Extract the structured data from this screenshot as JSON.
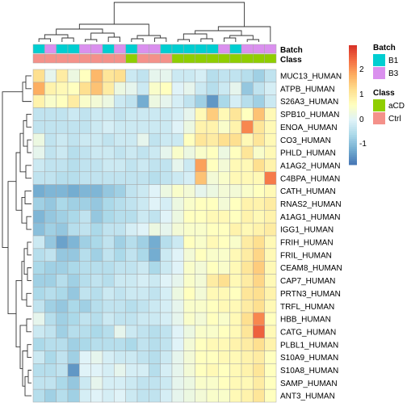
{
  "chart_data": {
    "type": "heatmap",
    "title": "",
    "rows": [
      "MUC13_HUMAN",
      "ATPB_HUMAN",
      "S26A3_HUMAN",
      "SPB10_HUMAN",
      "ENOA_HUMAN",
      "CO3_HUMAN",
      "PHLD_HUMAN",
      "A1AG2_HUMAN",
      "C4BPA_HUMAN",
      "CATH_HUMAN",
      "RNAS2_HUMAN",
      "A1AG1_HUMAN",
      "IGG1_HUMAN",
      "FRIH_HUMAN",
      "FRIL_HUMAN",
      "CEAM8_HUMAN",
      "CAP7_HUMAN",
      "PRTN3_HUMAN",
      "TRFL_HUMAN",
      "HBB_HUMAN",
      "CATG_HUMAN",
      "PLBL1_HUMAN",
      "S10A9_HUMAN",
      "S10A8_HUMAN",
      "SAMP_HUMAN",
      "ANT3_HUMAN"
    ],
    "annotation_rows": [
      {
        "name": "Batch",
        "values": [
          "B1",
          "B3",
          "B1",
          "B1",
          "B3",
          "B3",
          "B1",
          "B3",
          "B1",
          "B3",
          "B3",
          "B1",
          "B1",
          "B1",
          "B1",
          "B1",
          "B3",
          "B1",
          "B3",
          "B3",
          "B3"
        ]
      },
      {
        "name": "Class",
        "values": [
          "Ctrl",
          "Ctrl",
          "Ctrl",
          "Ctrl",
          "Ctrl",
          "Ctrl",
          "Ctrl",
          "Ctrl",
          "aCD",
          "Ctrl",
          "Ctrl",
          "Ctrl",
          "aCD",
          "aCD",
          "aCD",
          "aCD",
          "aCD",
          "aCD",
          "aCD",
          "aCD",
          "aCD"
        ]
      }
    ],
    "values": [
      [
        1.0,
        0.1,
        0.8,
        0.2,
        0.5,
        1.4,
        0.9,
        1.0,
        -0.2,
        -0.3,
        0.1,
        0.1,
        -0.2,
        -0.2,
        -0.1,
        -0.4,
        -0.3,
        -0.3,
        -0.4,
        -0.6,
        -0.3
      ],
      [
        1.5,
        0.7,
        0.6,
        0.5,
        1.0,
        1.3,
        0.8,
        0.2,
        0.1,
        -0.2,
        0.4,
        0.5,
        0.0,
        0.1,
        -0.2,
        -0.4,
        -0.2,
        0.1,
        -0.7,
        -0.3,
        -0.1
      ],
      [
        0.7,
        0.4,
        0.5,
        0.8,
        0.4,
        0.3,
        0.2,
        -0.2,
        -0.3,
        -1.0,
        0.2,
        0.1,
        -0.1,
        -0.3,
        -0.6,
        -1.2,
        -0.5,
        -0.1,
        -0.4,
        -0.6,
        -0.2
      ],
      [
        -0.3,
        -0.3,
        -0.3,
        -0.2,
        -0.3,
        -0.2,
        -0.2,
        -0.3,
        -0.2,
        -0.2,
        -0.2,
        -0.2,
        -0.1,
        0.1,
        0.6,
        1.2,
        0.6,
        0.9,
        0.5,
        1.3,
        0.6
      ],
      [
        -0.3,
        -0.3,
        -0.3,
        -0.3,
        -0.3,
        -0.2,
        -0.1,
        -0.2,
        -0.2,
        -0.2,
        -0.2,
        -0.2,
        0.0,
        0.2,
        0.7,
        0.7,
        0.4,
        0.7,
        1.8,
        0.9,
        0.6
      ],
      [
        0.2,
        -0.3,
        -0.2,
        -0.3,
        -0.2,
        -0.2,
        -0.3,
        -0.2,
        -0.2,
        0.1,
        -0.3,
        -0.2,
        -0.2,
        0.5,
        0.9,
        0.8,
        1.0,
        1.0,
        0.6,
        0.9,
        0.6
      ],
      [
        0.1,
        -0.3,
        -0.2,
        -0.4,
        -0.3,
        -0.2,
        -0.2,
        -0.3,
        -0.2,
        -0.3,
        -0.2,
        0.1,
        0.4,
        0.2,
        0.4,
        0.5,
        0.2,
        0.5,
        0.9,
        0.4,
        0.6
      ],
      [
        -0.2,
        -0.3,
        -0.3,
        -0.4,
        -0.3,
        -0.3,
        -0.2,
        -0.2,
        -0.3,
        -0.2,
        -0.3,
        -0.3,
        0.1,
        -0.2,
        1.6,
        0.5,
        0.3,
        0.6,
        0.6,
        1.0,
        0.7
      ],
      [
        -0.3,
        -0.3,
        -0.4,
        -0.4,
        -0.3,
        -0.3,
        -0.3,
        -0.3,
        -0.3,
        -0.3,
        -0.4,
        -0.3,
        -0.2,
        -0.1,
        1.3,
        0.3,
        0.4,
        0.6,
        0.6,
        0.6,
        1.9
      ],
      [
        -1.0,
        -0.9,
        -0.9,
        -1.0,
        -0.9,
        -0.9,
        -0.7,
        -0.6,
        -0.3,
        -0.2,
        0.0,
        0.2,
        0.4,
        0.3,
        0.1,
        0.2,
        0.3,
        0.3,
        0.4,
        0.5,
        0.6
      ],
      [
        -0.6,
        -0.7,
        -0.5,
        -0.6,
        -0.6,
        -0.7,
        -0.5,
        -0.4,
        -0.3,
        -0.2,
        0.0,
        -0.1,
        0.2,
        0.4,
        0.5,
        0.5,
        0.3,
        0.5,
        0.7,
        0.7,
        0.8
      ],
      [
        -0.9,
        -0.7,
        -0.6,
        -0.5,
        -0.3,
        -0.7,
        -0.5,
        -0.4,
        -0.4,
        -0.2,
        -0.3,
        0.0,
        0.2,
        0.5,
        0.5,
        0.6,
        0.6,
        0.5,
        0.7,
        0.6,
        0.7
      ],
      [
        -0.8,
        -0.6,
        -0.7,
        -0.4,
        -0.3,
        -0.5,
        -0.3,
        -0.3,
        -0.1,
        0.0,
        0.2,
        0.1,
        0.3,
        0.4,
        0.4,
        0.5,
        0.5,
        0.7,
        0.6,
        0.7,
        0.8
      ],
      [
        -0.2,
        -0.7,
        -1.1,
        -0.9,
        -0.6,
        -0.5,
        -0.3,
        -0.6,
        -0.4,
        -0.6,
        -1.0,
        -0.4,
        -0.2,
        0.5,
        0.4,
        0.6,
        0.5,
        0.4,
        0.8,
        1.0,
        0.6
      ],
      [
        -0.4,
        -0.3,
        -0.7,
        -0.7,
        -0.4,
        -0.6,
        -0.3,
        -0.5,
        -0.3,
        -0.5,
        -1.0,
        -0.2,
        0.0,
        0.3,
        0.5,
        0.4,
        0.4,
        0.6,
        0.8,
        1.1,
        0.6
      ],
      [
        -0.5,
        -0.6,
        -0.6,
        -0.5,
        -0.4,
        -0.4,
        -0.4,
        -0.3,
        -0.3,
        -0.2,
        -0.5,
        -0.2,
        0.0,
        0.4,
        0.3,
        0.5,
        0.4,
        0.6,
        0.9,
        1.2,
        0.6
      ],
      [
        -0.6,
        -0.6,
        -0.4,
        -0.6,
        -0.4,
        -0.3,
        -0.4,
        -0.2,
        -0.2,
        -0.1,
        -0.2,
        0.0,
        0.1,
        0.4,
        0.3,
        0.8,
        1.0,
        0.6,
        0.8,
        1.1,
        0.6
      ],
      [
        -0.5,
        -0.4,
        -0.5,
        -0.7,
        -0.3,
        -0.4,
        -0.2,
        -0.3,
        -0.2,
        -0.2,
        -0.3,
        -0.1,
        0.2,
        0.5,
        0.3,
        0.6,
        0.6,
        0.5,
        0.9,
        1.0,
        0.7
      ],
      [
        -0.3,
        -0.6,
        -0.7,
        -0.5,
        -0.6,
        -0.4,
        -0.3,
        -0.3,
        -0.4,
        -0.3,
        -0.2,
        -0.1,
        0.1,
        0.4,
        0.4,
        0.5,
        0.6,
        0.6,
        0.8,
        1.0,
        0.6
      ],
      [
        0.1,
        -0.4,
        -0.6,
        -0.5,
        -0.3,
        -0.4,
        -0.2,
        -0.3,
        -0.3,
        -0.2,
        -0.2,
        -0.1,
        0.1,
        0.4,
        0.3,
        0.5,
        0.4,
        0.6,
        1.0,
        1.8,
        0.5
      ],
      [
        -0.2,
        -0.3,
        -0.6,
        -0.4,
        -0.4,
        -0.5,
        -0.4,
        0.1,
        -0.2,
        -0.3,
        -0.4,
        -0.3,
        0.0,
        0.2,
        0.4,
        0.4,
        0.5,
        0.6,
        0.9,
        2.1,
        0.6
      ],
      [
        -0.5,
        -0.4,
        -0.4,
        -0.6,
        -0.5,
        -0.4,
        -0.4,
        -0.4,
        -0.5,
        -0.3,
        -0.4,
        -0.3,
        0.0,
        0.3,
        0.5,
        0.6,
        0.6,
        0.7,
        0.8,
        1.0,
        0.7
      ],
      [
        -0.2,
        -0.5,
        -0.3,
        -0.6,
        0.0,
        0.1,
        -0.1,
        -0.2,
        -0.2,
        -0.3,
        -0.4,
        -0.2,
        0.1,
        0.3,
        0.5,
        0.5,
        0.6,
        0.6,
        0.7,
        0.8,
        0.5
      ],
      [
        -0.4,
        -0.4,
        -0.3,
        -1.2,
        0.0,
        0.0,
        -0.1,
        0.1,
        -0.1,
        -0.1,
        -0.4,
        -0.1,
        0.1,
        0.3,
        0.5,
        0.6,
        0.5,
        0.6,
        0.7,
        0.9,
        0.5
      ],
      [
        -0.3,
        -0.3,
        -0.5,
        -0.7,
        -0.2,
        0.1,
        -0.1,
        -0.1,
        -0.2,
        -0.3,
        -0.3,
        -0.2,
        0.1,
        0.2,
        0.4,
        0.4,
        0.5,
        0.6,
        0.6,
        0.8,
        0.5
      ],
      [
        -0.4,
        -0.6,
        -0.4,
        -0.6,
        -0.1,
        0.0,
        -0.1,
        0.0,
        -0.2,
        -0.3,
        -0.3,
        -0.1,
        0.1,
        0.2,
        0.3,
        0.4,
        0.4,
        0.6,
        0.7,
        0.9,
        0.5
      ]
    ],
    "color_scale": {
      "ticks": [
        "2",
        "1",
        "0",
        "-1"
      ],
      "min": -1.5,
      "max": 2.5,
      "colors": [
        "#4575b4",
        "#74add1",
        "#abd9e9",
        "#e0f3f8",
        "#ffffbf",
        "#fee090",
        "#fdae61",
        "#f46d43",
        "#d73027"
      ]
    },
    "legend": {
      "batch_title": "Batch",
      "batch_entries": [
        {
          "label": "B1",
          "color": "#00CED1"
        },
        {
          "label": "B3",
          "color": "#DA90EE"
        }
      ],
      "class_title": "Class",
      "class_entries": [
        {
          "label": "aCD",
          "color": "#8FCE00"
        },
        {
          "label": "Ctrl",
          "color": "#F4918A"
        }
      ],
      "placement": "right"
    }
  }
}
